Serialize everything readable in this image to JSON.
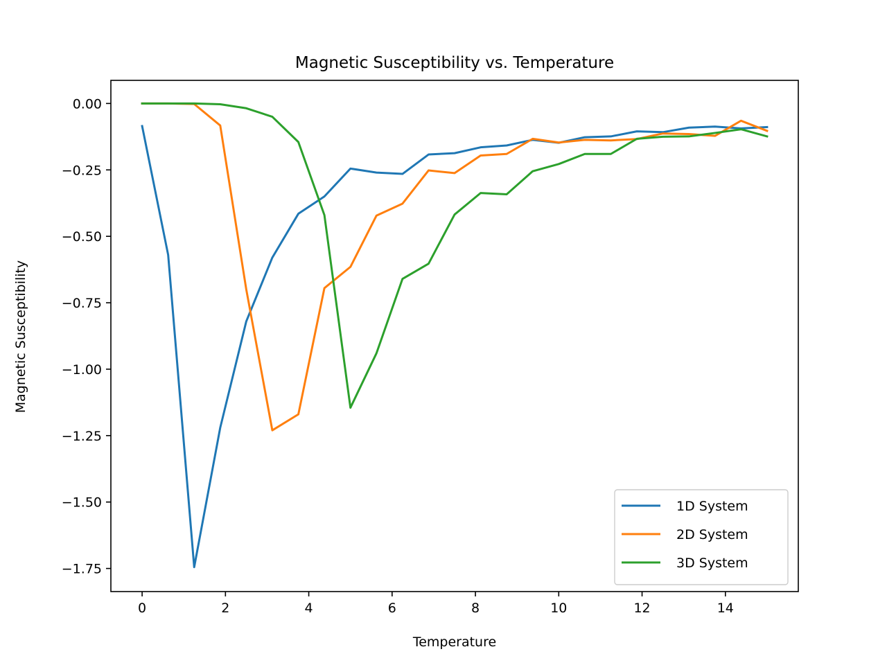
{
  "chart_data": {
    "type": "line",
    "title": "Magnetic Susceptibility vs. Temperature",
    "xlabel": "Temperature",
    "ylabel": "Magnetic Susceptibility",
    "xlim": [
      -0.75,
      15.75
    ],
    "ylim": [
      -1.837,
      0.087
    ],
    "xticks": [
      0,
      2,
      4,
      6,
      8,
      10,
      12,
      14
    ],
    "xtick_labels": [
      "0",
      "2",
      "4",
      "6",
      "8",
      "10",
      "12",
      "14"
    ],
    "yticks": [
      0.0,
      -0.25,
      -0.5,
      -0.75,
      -1.0,
      -1.25,
      -1.5,
      -1.75
    ],
    "ytick_labels": [
      "0.00",
      "−0.25",
      "−0.50",
      "−0.75",
      "−1.00",
      "−1.25",
      "−1.50",
      "−1.75"
    ],
    "grid": false,
    "legend": "lower-right",
    "x": [
      0.0,
      0.625,
      1.25,
      1.875,
      2.5,
      3.125,
      3.75,
      4.375,
      5.0,
      5.625,
      6.25,
      6.875,
      7.5,
      8.125,
      8.75,
      9.375,
      10.0,
      10.625,
      11.25,
      11.875,
      12.5,
      13.125,
      13.75,
      14.375,
      15.0
    ],
    "series": [
      {
        "name": "1D System",
        "color": "#1f77b4",
        "values": [
          -0.085,
          -0.57,
          -1.745,
          -1.22,
          -0.82,
          -0.58,
          -0.415,
          -0.35,
          -0.245,
          -0.26,
          -0.265,
          -0.192,
          -0.187,
          -0.165,
          -0.158,
          -0.137,
          -0.148,
          -0.127,
          -0.124,
          -0.105,
          -0.108,
          -0.091,
          -0.087,
          -0.094,
          -0.089
        ]
      },
      {
        "name": "2D System",
        "color": "#ff7f0e",
        "values": [
          0.0,
          0.0,
          -0.002,
          -0.083,
          -0.7,
          -1.23,
          -1.17,
          -0.695,
          -0.615,
          -0.422,
          -0.377,
          -0.252,
          -0.262,
          -0.196,
          -0.19,
          -0.133,
          -0.147,
          -0.137,
          -0.139,
          -0.134,
          -0.113,
          -0.115,
          -0.122,
          -0.065,
          -0.103
        ]
      },
      {
        "name": "3D System",
        "color": "#2ca02c",
        "values": [
          0.0,
          0.0,
          0.0,
          -0.003,
          -0.018,
          -0.05,
          -0.145,
          -0.42,
          -1.145,
          -0.94,
          -0.66,
          -0.603,
          -0.418,
          -0.337,
          -0.342,
          -0.255,
          -0.228,
          -0.19,
          -0.19,
          -0.133,
          -0.125,
          -0.124,
          -0.111,
          -0.097,
          -0.124
        ]
      }
    ]
  }
}
